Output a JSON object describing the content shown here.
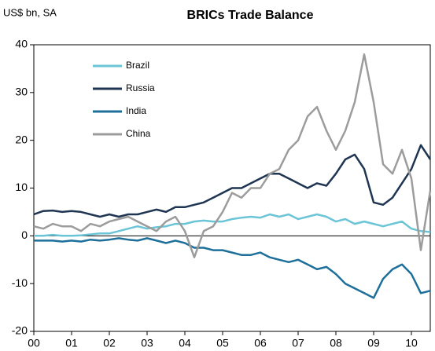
{
  "chart_data": {
    "type": "line",
    "title": "BRICs Trade Balance",
    "y_label": "US$ bn, SA",
    "x": [
      2000,
      2000.25,
      2000.5,
      2000.75,
      2001,
      2001.25,
      2001.5,
      2001.75,
      2002,
      2002.25,
      2002.5,
      2002.75,
      2003,
      2003.25,
      2003.5,
      2003.75,
      2004,
      2004.25,
      2004.5,
      2004.75,
      2005,
      2005.25,
      2005.5,
      2005.75,
      2006,
      2006.25,
      2006.5,
      2006.75,
      2007,
      2007.25,
      2007.5,
      2007.75,
      2008,
      2008.25,
      2008.5,
      2008.75,
      2009,
      2009.25,
      2009.5,
      2009.75,
      2010,
      2010.25,
      2010.5
    ],
    "series": [
      {
        "name": "Brazil",
        "color": "#6cc5d6",
        "values": [
          0,
          0,
          0.2,
          0,
          0,
          0.1,
          0.3,
          0.5,
          0.5,
          1,
          1.5,
          2,
          1.5,
          1.8,
          2,
          2.5,
          2.5,
          3,
          3.2,
          3,
          3,
          3.5,
          3.8,
          4,
          3.8,
          4.5,
          4,
          4.5,
          3.5,
          4,
          4.5,
          4,
          3,
          3.5,
          2.5,
          3,
          2.5,
          2,
          2.5,
          3,
          1.5,
          1,
          0.8
        ]
      },
      {
        "name": "Russia",
        "color": "#1f3552",
        "values": [
          4.5,
          5.2,
          5.3,
          5,
          5.2,
          5,
          4.5,
          4,
          4.5,
          4,
          4.5,
          4.5,
          5,
          5.5,
          5,
          6,
          6,
          6.5,
          7,
          8,
          9,
          10,
          10,
          11,
          12,
          13,
          13,
          12,
          11,
          10,
          11,
          10.5,
          13,
          16,
          17,
          14,
          7,
          6.5,
          8,
          11,
          14,
          19,
          16
        ]
      },
      {
        "name": "India",
        "color": "#1e6f9a",
        "values": [
          -1,
          -1,
          -1,
          -1.2,
          -1,
          -1.2,
          -0.8,
          -1,
          -0.8,
          -0.5,
          -0.8,
          -1,
          -0.5,
          -1,
          -1.5,
          -1,
          -1.5,
          -2.5,
          -2.5,
          -3,
          -3,
          -3.5,
          -4,
          -4,
          -3.5,
          -4.5,
          -5,
          -5.5,
          -5,
          -6,
          -7,
          -6.5,
          -8,
          -10,
          -11,
          -12,
          -13,
          -9,
          -7,
          -6,
          -8,
          -12,
          -11.5
        ]
      },
      {
        "name": "China",
        "color": "#9c9c9c",
        "values": [
          2,
          1.5,
          2.5,
          2,
          2,
          1,
          2.5,
          2,
          3,
          3.5,
          4,
          3,
          2,
          1,
          3,
          4,
          1,
          -4.5,
          1,
          2,
          5,
          9,
          8,
          10,
          10,
          13,
          14,
          18,
          20,
          25,
          27,
          22,
          18,
          22,
          28,
          38,
          28,
          15,
          13,
          18,
          12,
          -3,
          9.5
        ]
      }
    ],
    "xlim": [
      2000,
      2010.5
    ],
    "xticks": [
      {
        "value": 2000,
        "label": "00"
      },
      {
        "value": 2001,
        "label": "01"
      },
      {
        "value": 2002,
        "label": "02"
      },
      {
        "value": 2003,
        "label": "03"
      },
      {
        "value": 2004,
        "label": "04"
      },
      {
        "value": 2005,
        "label": "05"
      },
      {
        "value": 2006,
        "label": "06"
      },
      {
        "value": 2007,
        "label": "07"
      },
      {
        "value": 2008,
        "label": "08"
      },
      {
        "value": 2009,
        "label": "09"
      },
      {
        "value": 2010,
        "label": "10"
      }
    ],
    "ylim": [
      -20,
      40
    ],
    "yticks": [
      -20,
      -10,
      0,
      10,
      20,
      30,
      40
    ]
  }
}
